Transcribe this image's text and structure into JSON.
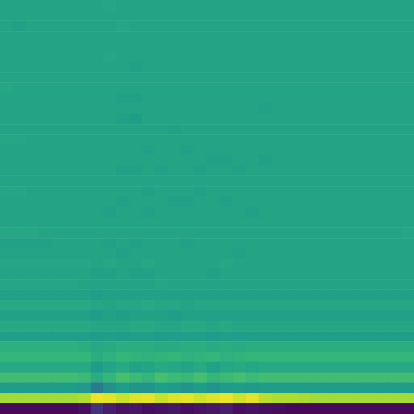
{
  "chart_data": {
    "type": "heatmap",
    "tick_labels": false,
    "color": "viridis",
    "color_range": [
      0,
      100
    ],
    "cells": [
      [
        58,
        58,
        58,
        58,
        58,
        58,
        58,
        58,
        59,
        58,
        58,
        58,
        58,
        58,
        58,
        58,
        58,
        58,
        58,
        58,
        58,
        58,
        58,
        58,
        58,
        58,
        58,
        58,
        58,
        58,
        58,
        58
      ],
      [
        58,
        58,
        58,
        58,
        58,
        58,
        58,
        58,
        58,
        58,
        58,
        58,
        58,
        58,
        58,
        58,
        58,
        58,
        58,
        58,
        58,
        58,
        58,
        58,
        58,
        58,
        58,
        58,
        58,
        58,
        58,
        58
      ],
      [
        58,
        57,
        58,
        58,
        58,
        58,
        58,
        58,
        58,
        59,
        58,
        58,
        58,
        58,
        58,
        58,
        58,
        58,
        58,
        58,
        58,
        58,
        58,
        58,
        58,
        58,
        58,
        58,
        58,
        58,
        58,
        58
      ],
      [
        58,
        58,
        58,
        58,
        58,
        58,
        58,
        58,
        58,
        58,
        58,
        58,
        58,
        58,
        58,
        58,
        58,
        58,
        58,
        58,
        58,
        58,
        58,
        58,
        58,
        58,
        58,
        58,
        58,
        58,
        58,
        58
      ],
      [
        58,
        58,
        58,
        58,
        58,
        58,
        58,
        58,
        58,
        58,
        58,
        58,
        58,
        58,
        58,
        58,
        58,
        58,
        58,
        58,
        58,
        58,
        58,
        58,
        58,
        58,
        58,
        58,
        58,
        58,
        58,
        58
      ],
      [
        58,
        58,
        58,
        58,
        58,
        58,
        58,
        58,
        59,
        58,
        58,
        58,
        58,
        58,
        58,
        58,
        58,
        58,
        58,
        58,
        58,
        58,
        58,
        58,
        58,
        58,
        58,
        58,
        58,
        58,
        58,
        58
      ],
      [
        58,
        58,
        58,
        58,
        58,
        58,
        58,
        58,
        58,
        58,
        57,
        58,
        58,
        58,
        58,
        58,
        58,
        58,
        58,
        58,
        58,
        58,
        58,
        58,
        58,
        58,
        58,
        58,
        58,
        58,
        58,
        58
      ],
      [
        58,
        58,
        58,
        58,
        58,
        58,
        58,
        58,
        58,
        58,
        58,
        58,
        58,
        58,
        58,
        58,
        58,
        58,
        58,
        58,
        58,
        58,
        58,
        58,
        58,
        58,
        58,
        58,
        58,
        58,
        58,
        58
      ],
      [
        59,
        58,
        58,
        58,
        58,
        58,
        58,
        58,
        58,
        58,
        58,
        58,
        58,
        58,
        58,
        58,
        58,
        58,
        58,
        58,
        58,
        58,
        58,
        58,
        58,
        58,
        58,
        58,
        58,
        58,
        58,
        58
      ],
      [
        58,
        58,
        58,
        58,
        58,
        58,
        58,
        58,
        58,
        57,
        57,
        58,
        58,
        58,
        58,
        58,
        58,
        58,
        58,
        58,
        58,
        58,
        58,
        58,
        58,
        58,
        58,
        58,
        58,
        58,
        58,
        58
      ],
      [
        58,
        58,
        58,
        58,
        58,
        58,
        58,
        58,
        58,
        58,
        58,
        58,
        58,
        58,
        58,
        58,
        58,
        58,
        58,
        58,
        57,
        58,
        58,
        58,
        58,
        58,
        58,
        58,
        58,
        58,
        58,
        58
      ],
      [
        58,
        58,
        58,
        58,
        58,
        58,
        58,
        58,
        58,
        57,
        56,
        58,
        58,
        58,
        58,
        58,
        58,
        58,
        58,
        58,
        58,
        58,
        58,
        58,
        58,
        58,
        58,
        58,
        58,
        58,
        58,
        58
      ],
      [
        58,
        58,
        58,
        58,
        58,
        58,
        58,
        58,
        58,
        58,
        58,
        58,
        58,
        57,
        58,
        58,
        58,
        58,
        58,
        58,
        58,
        58,
        58,
        58,
        58,
        58,
        58,
        58,
        58,
        58,
        58,
        58
      ],
      [
        59,
        59,
        58,
        58,
        58,
        58,
        58,
        58,
        58,
        58,
        58,
        58,
        58,
        58,
        58,
        58,
        58,
        58,
        58,
        58,
        58,
        58,
        58,
        58,
        58,
        58,
        58,
        58,
        58,
        58,
        58,
        58
      ],
      [
        58,
        58,
        58,
        58,
        58,
        58,
        58,
        58,
        58,
        58,
        58,
        57,
        58,
        58,
        57,
        58,
        58,
        58,
        58,
        58,
        58,
        58,
        58,
        58,
        58,
        58,
        58,
        58,
        58,
        58,
        58,
        58
      ],
      [
        58,
        58,
        58,
        58,
        58,
        58,
        58,
        58,
        58,
        58,
        58,
        58,
        58,
        58,
        58,
        58,
        57,
        57,
        58,
        58,
        57,
        58,
        58,
        58,
        58,
        58,
        58,
        58,
        58,
        58,
        58,
        58
      ],
      [
        58,
        58,
        58,
        58,
        58,
        58,
        58,
        58,
        58,
        57,
        57,
        58,
        57,
        58,
        58,
        57,
        58,
        58,
        57,
        58,
        58,
        58,
        58,
        58,
        58,
        58,
        58,
        58,
        58,
        58,
        58,
        58
      ],
      [
        58,
        58,
        58,
        58,
        58,
        58,
        58,
        58,
        58,
        58,
        58,
        58,
        58,
        58,
        58,
        58,
        58,
        58,
        58,
        58,
        58,
        58,
        58,
        58,
        58,
        58,
        58,
        58,
        58,
        58,
        58,
        58
      ],
      [
        59,
        59,
        58,
        58,
        58,
        58,
        58,
        58,
        58,
        58,
        58,
        57,
        58,
        58,
        58,
        57,
        58,
        58,
        58,
        58,
        58,
        58,
        58,
        58,
        58,
        58,
        58,
        58,
        58,
        58,
        58,
        58
      ],
      [
        58,
        58,
        58,
        58,
        58,
        58,
        58,
        58,
        58,
        57,
        58,
        58,
        58,
        57,
        57,
        58,
        58,
        57,
        58,
        58,
        58,
        58,
        58,
        58,
        58,
        58,
        58,
        58,
        58,
        58,
        58,
        58
      ],
      [
        58,
        58,
        58,
        58,
        58,
        58,
        58,
        58,
        57,
        58,
        58,
        57,
        58,
        58,
        58,
        58,
        58,
        58,
        58,
        57,
        58,
        58,
        58,
        58,
        58,
        58,
        58,
        58,
        58,
        58,
        58,
        58
      ],
      [
        58,
        58,
        58,
        58,
        58,
        58,
        58,
        58,
        58,
        58,
        58,
        58,
        58,
        58,
        58,
        58,
        58,
        58,
        58,
        58,
        58,
        58,
        58,
        58,
        58,
        58,
        58,
        58,
        58,
        58,
        58,
        58
      ],
      [
        59,
        59,
        59,
        58,
        58,
        58,
        58,
        58,
        58,
        58,
        58,
        58,
        58,
        58,
        58,
        58,
        58,
        58,
        58,
        58,
        58,
        58,
        58,
        58,
        58,
        58,
        58,
        58,
        58,
        58,
        58,
        59
      ],
      [
        57,
        57,
        57,
        57,
        58,
        58,
        58,
        58,
        57,
        58,
        57,
        58,
        58,
        58,
        57,
        58,
        58,
        58,
        58,
        58,
        58,
        58,
        58,
        58,
        58,
        58,
        58,
        58,
        58,
        58,
        58,
        58
      ],
      [
        58,
        58,
        58,
        58,
        58,
        58,
        58,
        58,
        58,
        57,
        58,
        58,
        58,
        58,
        58,
        58,
        58,
        58,
        57,
        58,
        58,
        58,
        58,
        58,
        58,
        58,
        58,
        58,
        58,
        58,
        58,
        58
      ],
      [
        59,
        59,
        59,
        59,
        59,
        59,
        59,
        58,
        59,
        58,
        58,
        59,
        58,
        58,
        58,
        58,
        58,
        59,
        58,
        58,
        58,
        58,
        58,
        58,
        58,
        58,
        58,
        58,
        58,
        58,
        58,
        58
      ],
      [
        58,
        58,
        58,
        58,
        58,
        58,
        58,
        57,
        57,
        58,
        57,
        57,
        58,
        58,
        58,
        58,
        57,
        58,
        58,
        58,
        58,
        58,
        58,
        58,
        58,
        58,
        58,
        58,
        58,
        58,
        58,
        58
      ],
      [
        59,
        59,
        59,
        59,
        59,
        59,
        58,
        58,
        58,
        58,
        58,
        58,
        59,
        58,
        58,
        58,
        58,
        58,
        58,
        58,
        58,
        58,
        58,
        58,
        58,
        58,
        58,
        58,
        58,
        58,
        58,
        58
      ],
      [
        57,
        57,
        57,
        57,
        57,
        57,
        57,
        56,
        57,
        57,
        57,
        57,
        57,
        57,
        57,
        57,
        57,
        57,
        57,
        57,
        57,
        57,
        57,
        57,
        57,
        57,
        57,
        57,
        57,
        57,
        57,
        57
      ],
      [
        60,
        60,
        60,
        60,
        60,
        60,
        60,
        59,
        58,
        59,
        59,
        60,
        59,
        59,
        58,
        59,
        59,
        59,
        59,
        59,
        59,
        59,
        59,
        59,
        59,
        59,
        59,
        59,
        59,
        59,
        59,
        59
      ],
      [
        57,
        57,
        57,
        57,
        57,
        57,
        57,
        56,
        57,
        56,
        57,
        57,
        57,
        56,
        57,
        57,
        57,
        57,
        57,
        57,
        57,
        57,
        57,
        57,
        57,
        57,
        57,
        57,
        57,
        57,
        57,
        57
      ],
      [
        60,
        60,
        60,
        60,
        60,
        60,
        60,
        59,
        59,
        59,
        60,
        60,
        59,
        59,
        60,
        60,
        59,
        60,
        59,
        59,
        59,
        59,
        59,
        59,
        59,
        59,
        59,
        59,
        59,
        59,
        59,
        59
      ],
      [
        56,
        56,
        56,
        56,
        56,
        56,
        56,
        55,
        56,
        55,
        56,
        56,
        55,
        56,
        56,
        56,
        55,
        56,
        56,
        56,
        56,
        56,
        56,
        56,
        56,
        56,
        56,
        56,
        56,
        56,
        56,
        56
      ],
      [
        63,
        63,
        63,
        63,
        63,
        63,
        62,
        60,
        61,
        62,
        62,
        62,
        61,
        61,
        62,
        62,
        61,
        62,
        61,
        62,
        62,
        62,
        62,
        62,
        62,
        62,
        62,
        62,
        62,
        62,
        62,
        62
      ],
      [
        66,
        66,
        66,
        66,
        66,
        66,
        66,
        62,
        64,
        66,
        65,
        64,
        65,
        66,
        64,
        65,
        66,
        64,
        65,
        66,
        66,
        66,
        66,
        66,
        66,
        66,
        66,
        66,
        66,
        66,
        66,
        66
      ],
      [
        60,
        60,
        60,
        60,
        60,
        60,
        60,
        55,
        58,
        60,
        57,
        58,
        60,
        59,
        58,
        60,
        57,
        59,
        60,
        59,
        60,
        60,
        60,
        60,
        60,
        60,
        60,
        60,
        60,
        60,
        60,
        60
      ],
      [
        69,
        69,
        69,
        69,
        69,
        69,
        68,
        62,
        66,
        70,
        68,
        66,
        70,
        68,
        67,
        70,
        66,
        68,
        70,
        68,
        69,
        69,
        69,
        69,
        69,
        69,
        69,
        69,
        69,
        69,
        69,
        69
      ],
      [
        55,
        55,
        55,
        55,
        55,
        55,
        54,
        42,
        50,
        55,
        52,
        52,
        56,
        54,
        52,
        55,
        52,
        54,
        55,
        54,
        55,
        55,
        55,
        55,
        55,
        55,
        55,
        55,
        55,
        55,
        55,
        55
      ],
      [
        86,
        86,
        86,
        86,
        86,
        86,
        88,
        97,
        96,
        92,
        95,
        96,
        92,
        95,
        96,
        93,
        95,
        97,
        93,
        96,
        90,
        88,
        88,
        87,
        86,
        86,
        86,
        86,
        86,
        86,
        86,
        86
      ],
      [
        2,
        2,
        2,
        2,
        2,
        2,
        4,
        14,
        8,
        5,
        6,
        4,
        5,
        6,
        4,
        5,
        6,
        8,
        4,
        5,
        4,
        3,
        2,
        2,
        2,
        2,
        2,
        2,
        2,
        2,
        2,
        2
      ]
    ]
  }
}
